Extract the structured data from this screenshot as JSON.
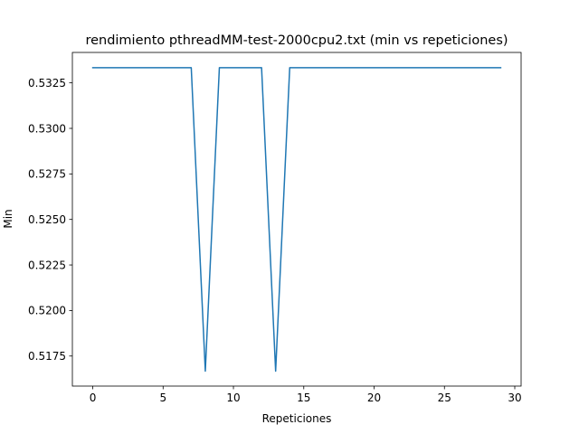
{
  "chart_data": {
    "type": "line",
    "title": "rendimiento pthreadMM-test-2000cpu2.txt (min vs repeticiones)",
    "xlabel": "Repeticiones",
    "ylabel": "Min",
    "xlim": [
      -1.45,
      30.45
    ],
    "ylim": [
      0.51585,
      0.53417
    ],
    "xticks": [
      0,
      5,
      10,
      15,
      20,
      25,
      30
    ],
    "yticks": [
      0.5175,
      0.52,
      0.5225,
      0.525,
      0.5275,
      0.53,
      0.5325
    ],
    "xtick_labels": [
      "0",
      "5",
      "10",
      "15",
      "20",
      "25",
      "30"
    ],
    "ytick_labels": [
      "0.5175",
      "0.5200",
      "0.5225",
      "0.5250",
      "0.5275",
      "0.5300",
      "0.5325"
    ],
    "grid": false,
    "series": [
      {
        "color": "#1f77b4",
        "x": [
          0,
          1,
          2,
          3,
          4,
          5,
          6,
          7,
          8,
          9,
          10,
          11,
          12,
          13,
          14,
          15,
          16,
          17,
          18,
          19,
          20,
          21,
          22,
          23,
          24,
          25,
          26,
          27,
          28,
          29
        ],
        "y": [
          0.53333,
          0.53333,
          0.53333,
          0.53333,
          0.53333,
          0.53333,
          0.53333,
          0.53333,
          0.51667,
          0.53333,
          0.53333,
          0.53333,
          0.53333,
          0.51667,
          0.53333,
          0.53333,
          0.53333,
          0.53333,
          0.53333,
          0.53333,
          0.53333,
          0.53333,
          0.53333,
          0.53333,
          0.53333,
          0.53333,
          0.53333,
          0.53333,
          0.53333,
          0.53333
        ]
      }
    ]
  }
}
